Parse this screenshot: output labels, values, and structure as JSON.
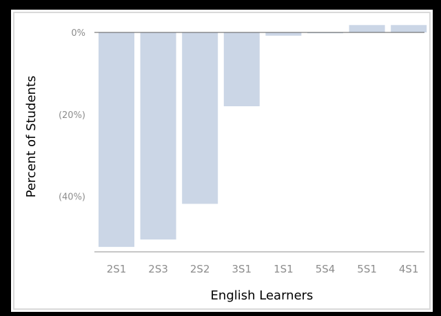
{
  "chart_data": {
    "type": "bar",
    "categories": [
      "2S1",
      "2S3",
      "2S2",
      "3S1",
      "1S1",
      "5S4",
      "5S1",
      "4S1"
    ],
    "values": [
      -52.3,
      -50.5,
      -41.8,
      -18.0,
      -0.8,
      -0.2,
      1.8,
      1.8
    ],
    "xlabel": "English Learners",
    "ylabel": "Percent of Students",
    "ylim": [
      -53,
      0
    ],
    "yticks": [
      0,
      -20,
      -40
    ],
    "ytick_labels": [
      "0%",
      "(20%)",
      "(40%)"
    ],
    "grid": false,
    "colors": {
      "bar": "#cbd6e6",
      "zero_line": "#595959",
      "baseline": "#8c8c8c"
    }
  }
}
